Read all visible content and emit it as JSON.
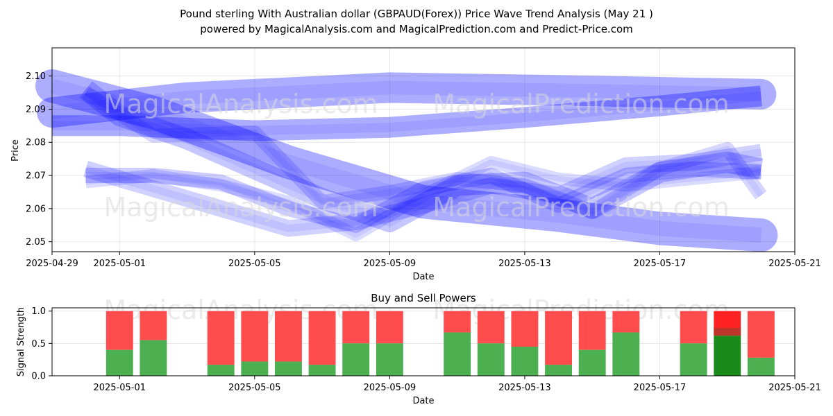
{
  "title_line1": "Pound sterling With Australian dollar (GBPAUD(Forex)) Price Wave Trend Analysis (May 21 )",
  "title_line2": "powered by MagicalAnalysis.com and MagicalPrediction.com and Predict-Price.com",
  "watermarks": [
    "MagicalAnalysis.com",
    "MagicalPrediction.com"
  ],
  "chart_data": [
    {
      "type": "area",
      "title": "",
      "xlabel": "Date",
      "ylabel": "Price",
      "xlim": [
        "2025-04-29",
        "2025-05-21"
      ],
      "ylim": [
        2.047,
        2.1085
      ],
      "x_ticks": [
        "2025-04-29",
        "2025-05-01",
        "2025-05-05",
        "2025-05-09",
        "2025-05-13",
        "2025-05-17",
        "2025-05-21"
      ],
      "y_ticks": [
        2.05,
        2.06,
        2.07,
        2.08,
        2.09,
        2.1
      ],
      "grid": true,
      "band_color": "#0000ff",
      "series": [
        {
          "x": [
            "2025-04-29",
            "2025-05-03",
            "2025-05-09",
            "2025-05-15",
            "2025-05-20"
          ],
          "y": [
            2.089,
            2.0935,
            2.0965,
            2.0955,
            2.0945
          ]
        },
        {
          "x": [
            "2025-04-29",
            "2025-05-02",
            "2025-05-06",
            "2025-05-10",
            "2025-05-14",
            "2025-05-17",
            "2025-05-20"
          ],
          "y": [
            2.097,
            2.089,
            2.074,
            2.062,
            2.058,
            2.054,
            2.052
          ]
        },
        {
          "x": [
            "2025-04-29",
            "2025-05-01",
            "2025-05-05",
            "2025-05-09",
            "2025-05-13",
            "2025-05-17",
            "2025-05-20"
          ],
          "y": [
            2.085,
            2.085,
            2.0835,
            2.0845,
            2.0875,
            2.091,
            2.094
          ]
        },
        {
          "x": [
            "2025-04-30",
            "2025-05-01",
            "2025-05-03",
            "2025-05-05",
            "2025-05-07",
            "2025-05-09",
            "2025-05-11",
            "2025-05-13",
            "2025-05-15",
            "2025-05-17",
            "2025-05-19",
            "2025-05-20"
          ],
          "y": [
            2.096,
            2.088,
            2.081,
            2.072,
            2.063,
            2.056,
            2.067,
            2.068,
            2.06,
            2.071,
            2.074,
            2.072
          ]
        },
        {
          "x": [
            "2025-04-30",
            "2025-05-02",
            "2025-05-04",
            "2025-05-06",
            "2025-05-08",
            "2025-05-10",
            "2025-05-12",
            "2025-05-14",
            "2025-05-16",
            "2025-05-18",
            "2025-05-20"
          ],
          "y": [
            2.07,
            2.07,
            2.068,
            2.06,
            2.055,
            2.066,
            2.07,
            2.061,
            2.07,
            2.072,
            2.071
          ]
        },
        {
          "x": [
            "2025-04-30",
            "2025-05-02",
            "2025-05-04",
            "2025-05-06",
            "2025-05-08",
            "2025-05-10",
            "2025-05-12",
            "2025-05-14",
            "2025-05-16",
            "2025-05-18",
            "2025-05-20"
          ],
          "y": [
            2.072,
            2.066,
            2.06,
            2.054,
            2.056,
            2.061,
            2.067,
            2.064,
            2.073,
            2.074,
            2.077
          ]
        },
        {
          "x": [
            "2025-04-30",
            "2025-05-02",
            "2025-05-05",
            "2025-05-07",
            "2025-05-09",
            "2025-05-11",
            "2025-05-13",
            "2025-05-15",
            "2025-05-17",
            "2025-05-19",
            "2025-05-20"
          ],
          "y": [
            2.095,
            2.082,
            2.083,
            2.062,
            2.065,
            2.069,
            2.067,
            2.059,
            2.072,
            2.078,
            2.064
          ]
        },
        {
          "x": [
            "2025-04-30",
            "2025-05-02",
            "2025-05-04",
            "2025-05-06",
            "2025-05-08",
            "2025-05-10",
            "2025-05-12",
            "2025-05-14",
            "2025-05-16",
            "2025-05-18",
            "2025-05-20"
          ],
          "y": [
            2.068,
            2.07,
            2.067,
            2.062,
            2.052,
            2.064,
            2.074,
            2.069,
            2.067,
            2.069,
            2.071
          ]
        }
      ]
    },
    {
      "type": "bar",
      "title": "Buy and Sell Powers",
      "xlabel": "Date",
      "ylabel": "Signal Strength",
      "xlim": [
        "2025-04-29",
        "2025-05-21"
      ],
      "ylim": [
        0,
        1.05
      ],
      "x_ticks": [
        "2025-05-01",
        "2025-05-05",
        "2025-05-09",
        "2025-05-13",
        "2025-05-17",
        "2025-05-21"
      ],
      "y_ticks": [
        0.0,
        0.5,
        1.0
      ],
      "grid": true,
      "colors": {
        "buy": "#4caf50",
        "sell": "#ff4d4d",
        "buy_strong": "#1a8a1a",
        "sell_strong": "#ff2222",
        "overlap": "#b03a2e"
      },
      "categories": [
        "2025-05-01",
        "2025-05-02",
        "2025-05-04",
        "2025-05-05",
        "2025-05-06",
        "2025-05-07",
        "2025-05-08",
        "2025-05-09",
        "2025-05-11",
        "2025-05-12",
        "2025-05-13",
        "2025-05-14",
        "2025-05-15",
        "2025-05-16",
        "2025-05-18",
        "2025-05-19",
        "2025-05-20"
      ],
      "series": [
        {
          "name": "Buy",
          "values": [
            0.4,
            0.55,
            0.17,
            0.22,
            0.22,
            0.17,
            0.5,
            0.5,
            0.67,
            0.5,
            0.45,
            0.17,
            0.4,
            0.67,
            0.5,
            0.62,
            0.28
          ]
        },
        {
          "name": "Sell",
          "values": [
            0.6,
            0.45,
            0.83,
            0.78,
            0.78,
            0.83,
            0.5,
            0.5,
            0.33,
            0.5,
            0.55,
            0.83,
            0.6,
            0.33,
            0.5,
            0.38,
            0.72
          ]
        }
      ],
      "strong_index": 15
    }
  ]
}
